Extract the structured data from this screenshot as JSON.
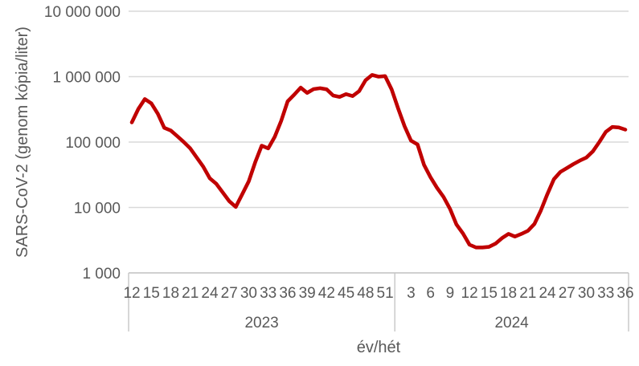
{
  "chart_data": {
    "type": "line",
    "title": "",
    "ylabel": "SARS-CoV-2 (genom kópia/liter)",
    "xlabel": "év/hét",
    "y_scale": "log10",
    "ylim": [
      1000,
      10000000
    ],
    "y_ticks": [
      10000000,
      1000000,
      100000,
      10000,
      1000
    ],
    "y_tick_labels": [
      "10 000 000",
      "1 000 000",
      "100 000",
      "10 000",
      "1 000"
    ],
    "grid": true,
    "legend": "none",
    "line_color": "#c00000",
    "grid_color": "#d9d9d9",
    "axis_color": "#c6c6c6",
    "text_color": "#595959",
    "groups": [
      {
        "year": "2023",
        "first_week": 12,
        "weeks_labeled": [
          12,
          15,
          18,
          21,
          24,
          27,
          30,
          33,
          36,
          39,
          42,
          45,
          48,
          51
        ],
        "values": [
          200000,
          320000,
          455000,
          390000,
          270000,
          165000,
          150000,
          123000,
          100000,
          80000,
          58000,
          42000,
          28000,
          23000,
          17000,
          12500,
          10200,
          16000,
          25000,
          49000,
          88000,
          80000,
          120000,
          210000,
          420000,
          530000,
          680000,
          565000,
          645000,
          665000,
          640000,
          515000,
          490000,
          540000,
          505000,
          600000,
          880000,
          1060000,
          1000000,
          1020000,
          640000
        ]
      },
      {
        "year": "2024",
        "first_week": 1,
        "weeks_labeled": [
          3,
          6,
          9,
          12,
          15,
          18,
          21,
          24,
          27,
          30,
          33,
          36
        ],
        "values": [
          330000,
          175000,
          105000,
          92000,
          45000,
          29000,
          20000,
          14500,
          9500,
          5500,
          4000,
          2700,
          2450,
          2450,
          2500,
          2800,
          3400,
          3950,
          3600,
          3950,
          4400,
          5600,
          9000,
          16000,
          27000,
          35000,
          40000,
          46000,
          52000,
          58000,
          72000,
          100000,
          143000,
          170000,
          167000,
          155000
        ]
      }
    ]
  }
}
